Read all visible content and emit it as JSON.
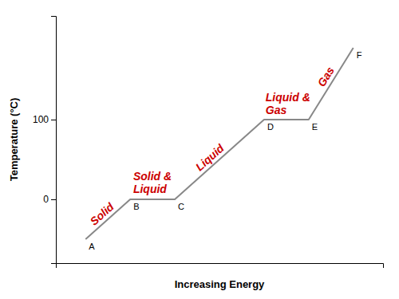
{
  "chart_data": {
    "type": "line",
    "xlabel": "Increasing Energy",
    "ylabel": "Temperature (°C)",
    "x": [
      1.0,
      2.5,
      4.0,
      7.0,
      8.5,
      10.0
    ],
    "values": [
      -50,
      0,
      0,
      100,
      100,
      190
    ],
    "color": "#888888",
    "xlim": [
      0.0,
      11.0
    ],
    "ylim": [
      -80,
      230
    ],
    "yticks": [
      0,
      100
    ],
    "tick_labels": "y",
    "annotations": [
      {
        "text": "A",
        "x": 1.0,
        "y": -50
      },
      {
        "text": "B",
        "x": 2.5,
        "y": 0
      },
      {
        "text": "C",
        "x": 4.0,
        "y": 0
      },
      {
        "text": "D",
        "x": 7.0,
        "y": 100
      },
      {
        "text": "E",
        "x": 8.5,
        "y": 100
      },
      {
        "text": "F",
        "x": 10.0,
        "y": 190
      },
      {
        "text": "Solid",
        "x": 1.4,
        "y": -38,
        "color": "#cc0000"
      },
      {
        "text": "Solid &\nLiquid",
        "x": 2.6,
        "y": 8,
        "color": "#cc0000"
      },
      {
        "text": "Liquid",
        "x": 5.0,
        "y": 28,
        "color": "#cc0000"
      },
      {
        "text": "Liquid &\nGas",
        "x": 7.05,
        "y": 107,
        "color": "#cc0000"
      },
      {
        "text": "Gas",
        "x": 9.0,
        "y": 140,
        "color": "#cc0000"
      }
    ]
  }
}
